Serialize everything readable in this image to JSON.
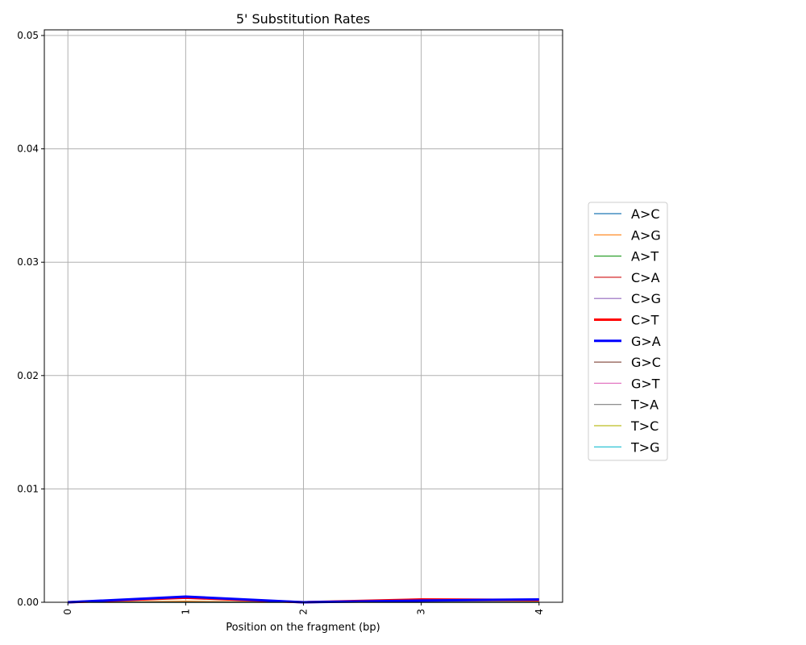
{
  "chart_data": {
    "type": "line",
    "title": "5' Substitution Rates",
    "xlabel": "Position on the fragment (bp)",
    "ylabel": "",
    "x": [
      0,
      1,
      2,
      3,
      4
    ],
    "x_tick_labels": [
      "0",
      "1",
      "2",
      "3",
      "4"
    ],
    "xlim": [
      -0.2,
      4.2
    ],
    "ylim": [
      0,
      0.0505
    ],
    "y_ticks": [
      0.0,
      0.01,
      0.02,
      0.03,
      0.04,
      0.05
    ],
    "y_tick_labels": [
      "0.00",
      "0.01",
      "0.02",
      "0.03",
      "0.04",
      "0.05"
    ],
    "grid": true,
    "legend_position": "right",
    "series": [
      {
        "name": "A>C",
        "color": "#1f77b4",
        "emphasis": false,
        "values": [
          0,
          0,
          0,
          0,
          0
        ]
      },
      {
        "name": "A>G",
        "color": "#ff7f0e",
        "emphasis": false,
        "values": [
          0,
          0.0001,
          0,
          0.0001,
          0.0001
        ]
      },
      {
        "name": "A>T",
        "color": "#2ca02c",
        "emphasis": false,
        "values": [
          0,
          0,
          0,
          0,
          0
        ]
      },
      {
        "name": "C>A",
        "color": "#d62728",
        "emphasis": false,
        "values": [
          0,
          0,
          0,
          0,
          0
        ]
      },
      {
        "name": "C>G",
        "color": "#9467bd",
        "emphasis": false,
        "values": [
          0,
          0,
          0,
          0,
          0
        ]
      },
      {
        "name": "C>T",
        "color": "#ff0000",
        "emphasis": true,
        "values": [
          0,
          0.0004,
          0,
          0.00025,
          0.0002
        ]
      },
      {
        "name": "G>A",
        "color": "#0000ff",
        "emphasis": true,
        "values": [
          0,
          0.0005,
          0,
          0.00015,
          0.00025
        ]
      },
      {
        "name": "G>C",
        "color": "#8c564b",
        "emphasis": false,
        "values": [
          0,
          0,
          0,
          0,
          0
        ]
      },
      {
        "name": "G>T",
        "color": "#e377c2",
        "emphasis": false,
        "values": [
          0,
          0,
          0,
          0,
          0
        ]
      },
      {
        "name": "T>A",
        "color": "#7f7f7f",
        "emphasis": false,
        "values": [
          0,
          0,
          0,
          0,
          0
        ]
      },
      {
        "name": "T>C",
        "color": "#bcbd22",
        "emphasis": false,
        "values": [
          0,
          0,
          0,
          0,
          0
        ]
      },
      {
        "name": "T>G",
        "color": "#17becf",
        "emphasis": false,
        "values": [
          0,
          0,
          0,
          0,
          0
        ]
      }
    ]
  }
}
